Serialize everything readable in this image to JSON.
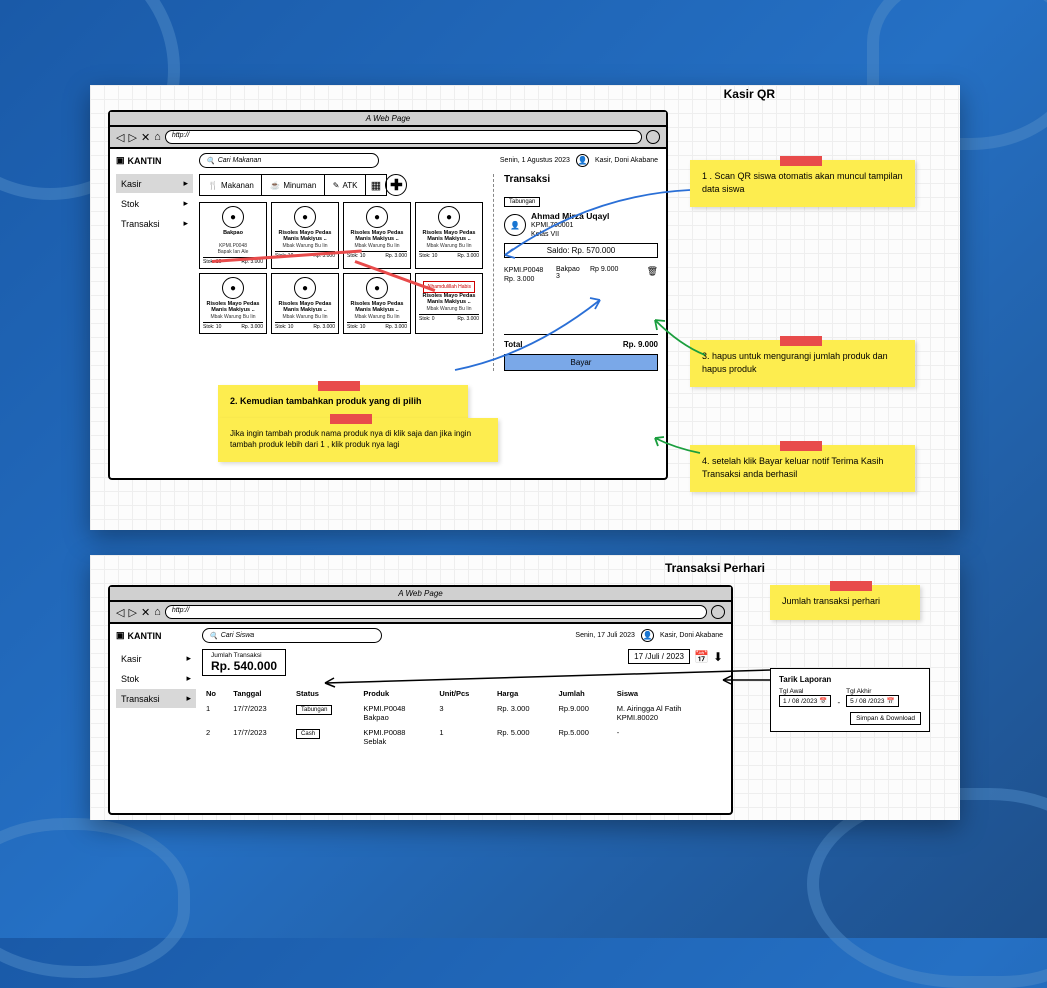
{
  "colors": {
    "bg": "#1e5ba8",
    "sticky": "#fded4f",
    "tape": "#e84b4b",
    "pay": "#7aa8e8"
  },
  "card1": {
    "page_title": "Kasir QR",
    "browser": {
      "title": "A Web Page",
      "url": "http://"
    },
    "app_name": "KANTIN",
    "sidebar": [
      {
        "label": "Kasir",
        "active": true
      },
      {
        "label": "Stok",
        "active": false
      },
      {
        "label": "Transaksi",
        "active": false
      }
    ],
    "search_placeholder": "Cari Makanan",
    "date": "Senin, 1 Agustus 2023",
    "user": "Kasir, Doni Akabane",
    "tabs": [
      {
        "icon": "🍴",
        "label": "Makanan"
      },
      {
        "icon": "☕",
        "label": "Minuman"
      },
      {
        "icon": "✎",
        "label": "ATK"
      }
    ],
    "products": [
      {
        "name": "Bakpao",
        "code": "KPMI.P0048",
        "sub": "Bapak Ian Ale",
        "stock": "Stok: 10",
        "price": "Rp. 3.000"
      },
      {
        "name": "Risoles Mayo Pedas Manis Makiyus ..",
        "code": "",
        "sub": "Mbak Warung Bu Iin",
        "stock": "Stok: 10",
        "price": "Rp. 3.000"
      },
      {
        "name": "Risoles Mayo Pedas Manis Makiyus ..",
        "code": "",
        "sub": "Mbak Warung Bu Iin",
        "stock": "Stok: 10",
        "price": "Rp. 3.000"
      },
      {
        "name": "Risoles Mayo Pedas Manis Makiyus ..",
        "code": "",
        "sub": "Mbak Warung Bu Iin",
        "stock": "Stok: 10",
        "price": "Rp. 3.000"
      },
      {
        "name": "Risoles Mayo Pedas Manis Makiyus ..",
        "code": "",
        "sub": "Mbak Warung Bu Iin",
        "stock": "Stok: 10",
        "price": "Rp. 3.000"
      },
      {
        "name": "Risoles Mayo Pedas Manis Makiyus ..",
        "code": "",
        "sub": "Mbak Warung Bu Iin",
        "stock": "Stok: 10",
        "price": "Rp. 3.000"
      },
      {
        "name": "Risoles Mayo Pedas Manis Makiyus ..",
        "code": "",
        "sub": "Mbak Warung Bu Iin",
        "stock": "Stok: 10",
        "price": "Rp. 3.000"
      },
      {
        "sold": true,
        "badge": "Alhamdulillah Habis",
        "name": "Risoles Mayo Pedas Manis Makiyus ..",
        "sub": "Mbak Warung Bu Iin",
        "stock": "Stok: 0",
        "price": "Rp. 3.000"
      }
    ],
    "trx": {
      "title": "Transaksi",
      "source": "Tabungan",
      "student": {
        "name": "Ahmad Mirza Uqayl",
        "id": "KPMI.700001",
        "class": "Kelas VII"
      },
      "saldo_label": "Saldo: Rp. 570.000",
      "items": [
        {
          "code": "KPMI.P0048",
          "price_unit": "Rp. 3.000",
          "name": "Bakpao",
          "qty": "3",
          "price": "Rp 9.000"
        }
      ],
      "total_label": "Total",
      "total_value": "Rp. 9.000",
      "pay_label": "Bayar"
    },
    "notes": {
      "n1": "1 . Scan QR siswa otomatis akan muncul tampilan data siswa",
      "n2": "2. Kemudian tambahkan produk yang di pilih",
      "n2b": "Jika ingin tambah produk nama produk nya di klik saja dan jika ingin tambah produk lebih dari 1 , klik produk nya lagi",
      "n3": "3. hapus untuk mengurangi jumlah produk dan hapus produk",
      "n4": "4. setelah klik Bayar keluar notif Terima Kasih Transaksi anda berhasil"
    }
  },
  "card2": {
    "page_title": "Transaksi Perhari",
    "browser": {
      "title": "A Web Page",
      "url": "http://"
    },
    "app_name": "KANTIN",
    "sidebar": [
      {
        "label": "Kasir",
        "active": false
      },
      {
        "label": "Stok",
        "active": false
      },
      {
        "label": "Transaksi",
        "active": true
      }
    ],
    "search_placeholder": "Cari Siswa",
    "date": "Senin, 17 Juli 2023",
    "user": "Kasir, Doni Akabane",
    "summary": {
      "label": "Jumlah Transaksi",
      "value": "Rp. 540.000"
    },
    "date_filter": "17 /Juli / 2023",
    "table": {
      "headers": [
        "No",
        "Tanggal",
        "Status",
        "Produk",
        "Unit/Pcs",
        "Harga",
        "Jumlah",
        "Siswa"
      ],
      "rows": [
        {
          "no": "1",
          "tgl": "17/7/2023",
          "status": "Tabungan",
          "produk": "KPMI.P0048\nBakpao",
          "unit": "3",
          "harga": "Rp. 3.000",
          "jumlah": "Rp.9.000",
          "siswa": "M. Airingga Al Fatih\nKPMI.80020"
        },
        {
          "no": "2",
          "tgl": "17/7/2023",
          "status": "Cash",
          "produk": "KPMI.P0088\nSeblak",
          "unit": "1",
          "harga": "Rp. 5.000",
          "jumlah": "Rp.5.000",
          "siswa": "-"
        }
      ]
    },
    "sticky": "Jumlah transaksi perhari",
    "report": {
      "title": "Tarik Laporan",
      "from_label": "Tgl Awal",
      "from": "1 / 08 /2023",
      "to_label": "Tgl Akhir",
      "to": "5 / 08 /2023",
      "btn": "Simpan & Download"
    }
  }
}
